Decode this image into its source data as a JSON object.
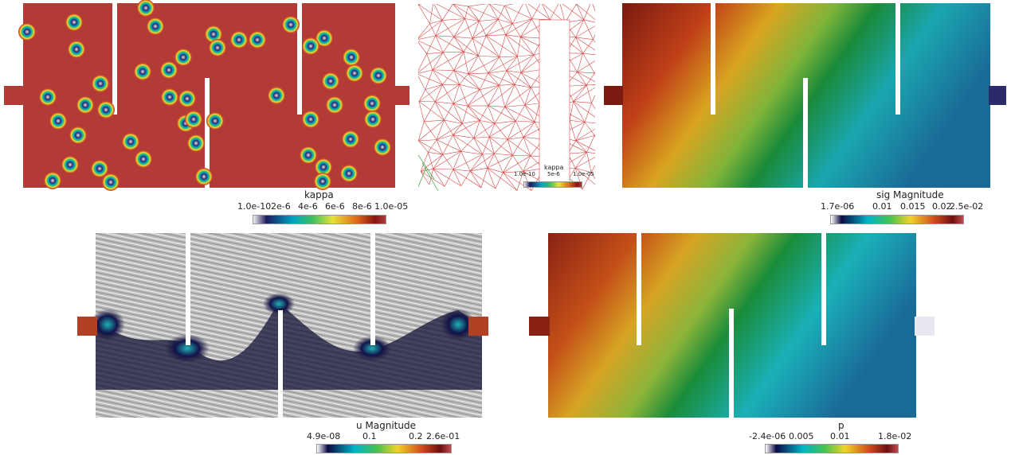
{
  "colors": {
    "kappa_background": "#b23b37",
    "rainbow": [
      "#f0f0f0",
      "#1b1b5e",
      "#00a4c4",
      "#3fbf5e",
      "#e6e23a",
      "#e06a1a",
      "#8a1410",
      "#b03a3a"
    ],
    "cool_warm": [
      "#ffffff",
      "#0b0b44",
      "#00b4c8",
      "#49c24e",
      "#f1d32a",
      "#d14c1d",
      "#6e0f10",
      "#c24c4c"
    ],
    "mesh_edge": "#d64848",
    "panel_sig_left": "#b43a1d",
    "panel_sig_mid": "#b9be20",
    "panel_sig_right": "#1c8aa0"
  },
  "colorbars": {
    "kappa": {
      "title": "kappa",
      "ticks": [
        "1.0e-10",
        "2e-6",
        "4e-6",
        "6e-6",
        "8e-6",
        "1.0e-05"
      ]
    },
    "kappa_small": {
      "title": "kappa",
      "ticks": [
        "1.0e-10",
        "5e-6",
        "1.0e-05"
      ]
    },
    "sig": {
      "title": "sig Magnitude",
      "ticks": [
        "1.7e-06",
        "0.01",
        "0.015",
        "0.02",
        "2.5e-02"
      ]
    },
    "u": {
      "title": "u Magnitude",
      "ticks": [
        "4.9e-08",
        "0.1",
        "0.2",
        "2.6e-01"
      ]
    },
    "p": {
      "title": "p",
      "ticks": [
        "-2.4e-06",
        "0.005",
        "0.01",
        "1.8e-02"
      ]
    }
  }
}
